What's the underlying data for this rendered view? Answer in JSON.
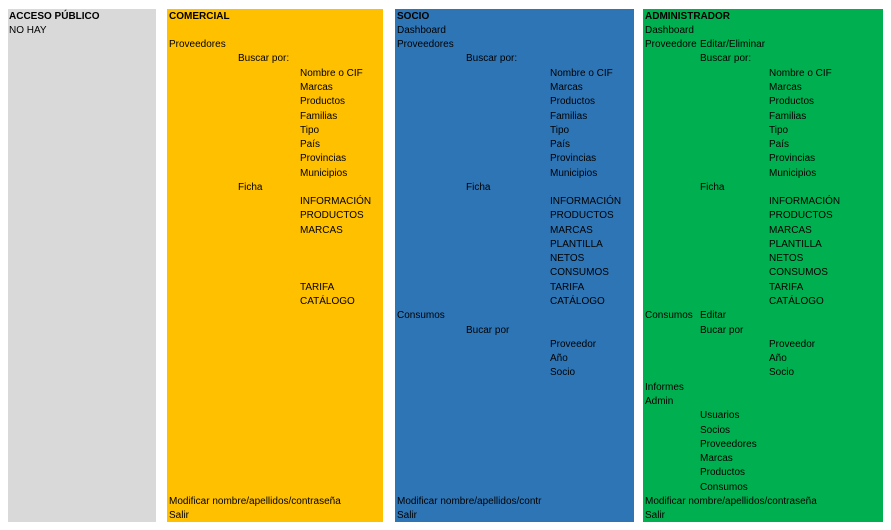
{
  "publico": {
    "header": "ACCESO PÚBLICO",
    "value": "NO HAY"
  },
  "comercial": {
    "header": "COMERCIAL",
    "proveedores": "Proveedores",
    "buscar_por": "Buscar por:",
    "search_fields": [
      "Nombre o CIF",
      "Marcas",
      "Productos",
      "Familias",
      "Tipo",
      "País",
      "Provincias",
      "Municipios"
    ],
    "ficha": "Ficha",
    "ficha_items": [
      "INFORMACIÓN",
      "PRODUCTOS",
      "MARCAS"
    ],
    "ficha_items_2": [
      "TARIFA",
      "CATÁLOGO"
    ],
    "modificar": "Modificar nombre/apellidos/contraseña",
    "salir": "Salir"
  },
  "socio": {
    "header": "SOCIO",
    "dashboard": "Dashboard",
    "proveedores": "Proveedores",
    "buscar_por": "Buscar por:",
    "search_fields": [
      "Nombre o CIF",
      "Marcas",
      "Productos",
      "Familias",
      "Tipo",
      "País",
      "Provincias",
      "Municipios"
    ],
    "ficha": "Ficha",
    "ficha_items": [
      "INFORMACIÓN",
      "PRODUCTOS",
      "MARCAS",
      "PLANTILLA",
      "NETOS",
      "CONSUMOS",
      "TARIFA",
      "CATÁLOGO"
    ],
    "consumos": "Consumos",
    "bucar_por": "Bucar por",
    "consumos_fields": [
      "Proveedor",
      "Año",
      "Socio"
    ],
    "modificar": "Modificar nombre/apellidos/contr",
    "salir": "Salir"
  },
  "admin": {
    "header": "ADMINISTRADOR",
    "dashboard": "Dashboard",
    "proveedores": "Proveedore",
    "editar_eliminar": "Editar/Eliminar",
    "buscar_por": "Buscar por:",
    "search_fields": [
      "Nombre o CIF",
      "Marcas",
      "Productos",
      "Familias",
      "Tipo",
      "País",
      "Provincias",
      "Municipios"
    ],
    "ficha": "Ficha",
    "ficha_items": [
      "INFORMACIÓN",
      "PRODUCTOS",
      "MARCAS",
      "PLANTILLA",
      "NETOS",
      "CONSUMOS",
      "TARIFA",
      "CATÁLOGO"
    ],
    "consumos": "Consumos",
    "editar": "Editar",
    "buscar_por_2": "Bucar por",
    "consumos_fields": [
      "Proveedor",
      "Año",
      "Socio"
    ],
    "informes": "Informes",
    "admin_label": "Admin",
    "admin_items": [
      "Usuarios",
      "Socios",
      "Proveedores",
      "Marcas",
      "Productos",
      "Consumos"
    ],
    "modificar": "Modificar nombre/apellidos/contraseña",
    "salir": "Salir"
  }
}
